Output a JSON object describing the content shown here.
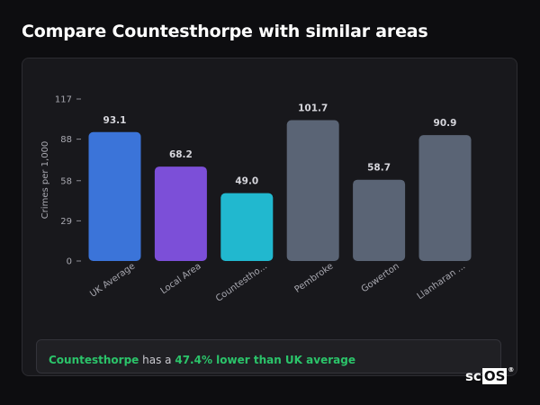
{
  "page": {
    "title": "Compare Countesthorpe with similar areas"
  },
  "chart_data": {
    "type": "bar",
    "ylabel": "Crimes per 1,000",
    "xlabel": "",
    "ylim": [
      0,
      117
    ],
    "yticks": [
      0,
      29,
      58,
      88,
      117
    ],
    "ytick_labels": [
      "0",
      "29",
      "58",
      "88",
      "117"
    ],
    "categories": [
      "UK Average",
      "Local Area",
      "Countestho...",
      "Pembroke",
      "Gowerton",
      "Llanharan ..."
    ],
    "values": [
      93.1,
      68.2,
      49.0,
      101.7,
      58.7,
      90.9
    ],
    "value_labels": [
      "93.1",
      "68.2",
      "49.0",
      "101.7",
      "58.7",
      "90.9"
    ],
    "colors": [
      "#3b74d9",
      "#7c4fd8",
      "#21b8cf",
      "#5a6475",
      "#5a6475",
      "#5a6475"
    ],
    "grid": false,
    "legend": "none"
  },
  "summary": {
    "area": "Countesthorpe",
    "middle": " has a ",
    "comparison": "47.4% lower than UK average"
  },
  "logo": {
    "prefix": "sc",
    "boxed": "OS",
    "mark": "®"
  }
}
